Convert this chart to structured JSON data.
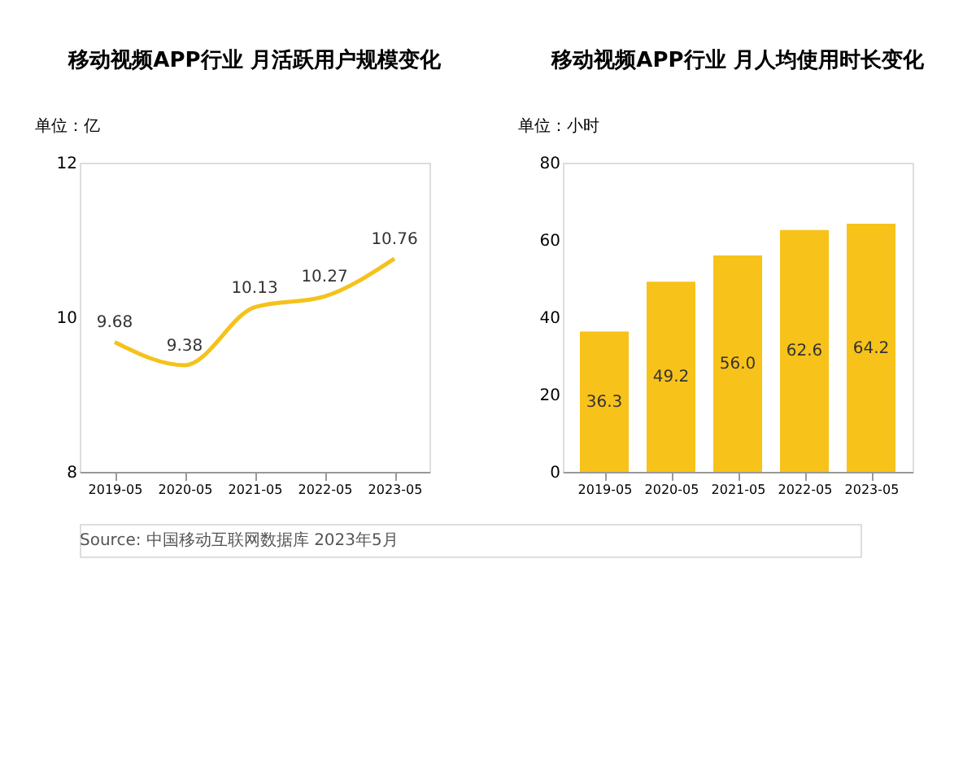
{
  "chart_data": [
    {
      "type": "line",
      "title": "移动视频APP行业 月活跃用户规模变化",
      "ylabel": "单位：亿",
      "categories": [
        "2019-05",
        "2020-05",
        "2021-05",
        "2022-05",
        "2023-05"
      ],
      "series": [
        {
          "color": "#f5c21b",
          "values": [
            9.68,
            9.38,
            10.13,
            10.27,
            10.76
          ]
        }
      ],
      "value_labels": [
        "9.68",
        "9.38",
        "10.13",
        "10.27",
        "10.76"
      ],
      "ylim": [
        8,
        12
      ],
      "yticks": [
        8,
        10,
        12
      ],
      "marker": "none",
      "annotations": [
        "Source: 中国移动互联网数据库 2023年5月"
      ]
    },
    {
      "type": "bar",
      "title": "移动视频APP行业 月人均使用时长变化",
      "ylabel": "单位：小时",
      "categories": [
        "2019-05",
        "2020-05",
        "2021-05",
        "2022-05",
        "2023-05"
      ],
      "series": [
        {
          "color": "#f7c21a",
          "values": [
            36.3,
            49.2,
            56.0,
            62.6,
            64.2
          ]
        }
      ],
      "value_labels": [
        "36.3",
        "49.2",
        "56.0",
        "62.6",
        "64.2"
      ],
      "ylim": [
        0,
        80
      ],
      "yticks": [
        0,
        20,
        40,
        60,
        80
      ]
    }
  ]
}
